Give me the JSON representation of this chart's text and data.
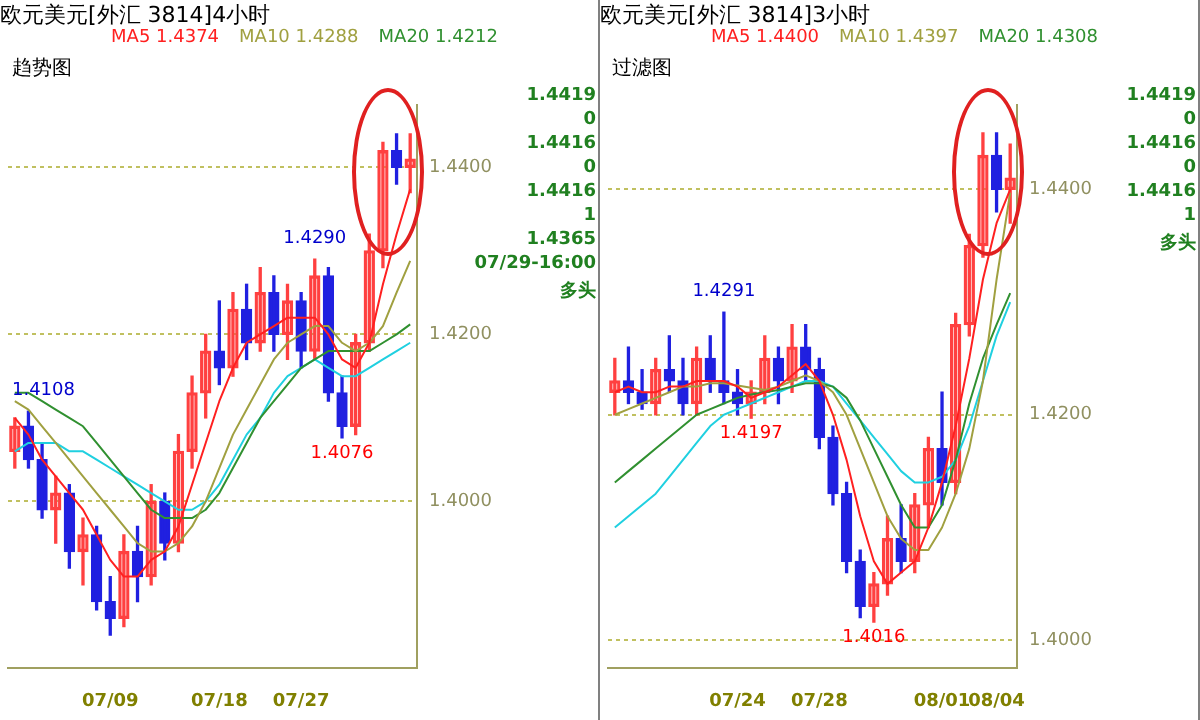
{
  "chart_data": [
    {
      "type": "candlestick",
      "title": "欧元美元[外汇 3814]4小时",
      "subtitle": "趋势图",
      "legend": "top",
      "grid": "y",
      "categories": [
        null,
        null,
        null,
        null,
        null,
        null,
        null,
        "07/09",
        null,
        null,
        null,
        null,
        null,
        null,
        null,
        "07/18",
        null,
        null,
        null,
        null,
        null,
        "07/27",
        null,
        null,
        null,
        null,
        null,
        null,
        null,
        null
      ],
      "ohlc": [
        [
          1.406,
          1.41,
          1.404,
          1.409
        ],
        [
          1.409,
          1.4108,
          1.404,
          1.405
        ],
        [
          1.405,
          1.407,
          1.398,
          1.399
        ],
        [
          1.399,
          1.403,
          1.395,
          1.401
        ],
        [
          1.401,
          1.402,
          1.392,
          1.394
        ],
        [
          1.394,
          1.398,
          1.39,
          1.396
        ],
        [
          1.396,
          1.397,
          1.387,
          1.388
        ],
        [
          1.388,
          1.391,
          1.384,
          1.386
        ],
        [
          1.386,
          1.396,
          1.385,
          1.394
        ],
        [
          1.394,
          1.397,
          1.388,
          1.391
        ],
        [
          1.391,
          1.402,
          1.39,
          1.4
        ],
        [
          1.4,
          1.401,
          1.393,
          1.395
        ],
        [
          1.395,
          1.408,
          1.394,
          1.406
        ],
        [
          1.406,
          1.415,
          1.404,
          1.413
        ],
        [
          1.413,
          1.42,
          1.41,
          1.418
        ],
        [
          1.418,
          1.424,
          1.414,
          1.416
        ],
        [
          1.416,
          1.425,
          1.415,
          1.423
        ],
        [
          1.423,
          1.426,
          1.417,
          1.419
        ],
        [
          1.419,
          1.428,
          1.418,
          1.425
        ],
        [
          1.425,
          1.427,
          1.418,
          1.42
        ],
        [
          1.42,
          1.426,
          1.417,
          1.424
        ],
        [
          1.424,
          1.425,
          1.416,
          1.418
        ],
        [
          1.418,
          1.429,
          1.417,
          1.427
        ],
        [
          1.427,
          1.428,
          1.412,
          1.413
        ],
        [
          1.413,
          1.415,
          1.4076,
          1.409
        ],
        [
          1.409,
          1.42,
          1.408,
          1.419
        ],
        [
          1.419,
          1.432,
          1.418,
          1.43
        ],
        [
          1.43,
          1.443,
          1.428,
          1.442
        ],
        [
          1.442,
          1.444,
          1.438,
          1.44
        ],
        [
          1.44,
          1.444,
          1.437,
          1.441
        ]
      ],
      "series": [
        {
          "name": "MA5 1.4374",
          "type": "line",
          "color": "#ff2020",
          "values": [
            1.41,
            1.408,
            1.405,
            1.403,
            1.401,
            1.399,
            1.396,
            1.393,
            1.391,
            1.391,
            1.393,
            1.394,
            1.397,
            1.402,
            1.407,
            1.412,
            1.416,
            1.419,
            1.42,
            1.421,
            1.422,
            1.422,
            1.422,
            1.42,
            1.417,
            1.416,
            1.419,
            1.426,
            1.432,
            1.4374
          ]
        },
        {
          "name": "MA10 1.4288",
          "type": "line",
          "color": "#a0a040",
          "values": [
            1.412,
            1.411,
            1.409,
            1.407,
            1.405,
            1.403,
            1.401,
            1.399,
            1.397,
            1.395,
            1.394,
            1.394,
            1.395,
            1.397,
            1.4,
            1.404,
            1.408,
            1.411,
            1.414,
            1.417,
            1.419,
            1.42,
            1.421,
            1.421,
            1.419,
            1.418,
            1.419,
            1.421,
            1.425,
            1.4288
          ]
        },
        {
          "name": "MA20 1.4212",
          "type": "line",
          "color": "#309030",
          "values": [
            1.413,
            1.413,
            1.412,
            1.411,
            1.41,
            1.409,
            1.407,
            1.405,
            1.403,
            1.401,
            1.399,
            1.398,
            1.398,
            1.398,
            1.399,
            1.401,
            1.404,
            1.407,
            1.41,
            1.412,
            1.414,
            1.416,
            1.417,
            1.418,
            1.418,
            1.418,
            1.418,
            1.419,
            1.42,
            1.4212
          ]
        },
        {
          "type": "line",
          "color": "#20d0e0",
          "values": [
            1.406,
            1.407,
            1.407,
            1.407,
            1.406,
            1.406,
            1.405,
            1.404,
            1.403,
            1.402,
            1.401,
            1.4,
            1.399,
            1.399,
            1.4,
            1.402,
            1.405,
            1.408,
            1.41,
            1.413,
            1.415,
            1.416,
            1.417,
            1.416,
            1.415,
            1.415,
            1.416,
            1.417,
            1.418,
            1.419
          ]
        }
      ],
      "ylim": [
        1.38,
        1.4475
      ],
      "yticks": [
        {
          "value": 1.4,
          "label": "1.4000"
        },
        {
          "value": 1.42,
          "label": "1.4200"
        },
        {
          "value": 1.44,
          "label": "1.4400"
        }
      ],
      "annotations": [
        "1.4419",
        "0",
        "1.4416",
        "0",
        "1.4416",
        "1",
        "1.4365",
        "07/29-16:00",
        "多头",
        {
          "text": "1.4108",
          "y": 1.4108
        },
        {
          "text": "1.4290",
          "y": 1.429
        },
        {
          "text": "1.4076",
          "y": 1.4076
        }
      ]
    },
    {
      "type": "candlestick",
      "title": "欧元美元[外汇 3814]3小时",
      "subtitle": "过滤图",
      "legend": "top",
      "grid": "y",
      "categories": [
        null,
        null,
        null,
        null,
        null,
        null,
        null,
        null,
        null,
        "07/24",
        null,
        null,
        null,
        null,
        null,
        "07/28",
        null,
        null,
        null,
        null,
        null,
        null,
        null,
        null,
        "08/01",
        null,
        null,
        null,
        "08/04",
        null
      ],
      "ohlc": [
        [
          1.422,
          1.425,
          1.42,
          1.423
        ],
        [
          1.423,
          1.426,
          1.421,
          1.422
        ],
        [
          1.422,
          1.424,
          1.4205,
          1.421
        ],
        [
          1.421,
          1.425,
          1.42,
          1.424
        ],
        [
          1.424,
          1.427,
          1.422,
          1.423
        ],
        [
          1.423,
          1.425,
          1.42,
          1.421
        ],
        [
          1.421,
          1.426,
          1.42,
          1.425
        ],
        [
          1.425,
          1.427,
          1.422,
          1.423
        ],
        [
          1.423,
          1.4291,
          1.421,
          1.422
        ],
        [
          1.422,
          1.424,
          1.42,
          1.421
        ],
        [
          1.421,
          1.423,
          1.4197,
          1.422
        ],
        [
          1.422,
          1.427,
          1.421,
          1.425
        ],
        [
          1.425,
          1.426,
          1.421,
          1.423
        ],
        [
          1.423,
          1.428,
          1.422,
          1.426
        ],
        [
          1.426,
          1.428,
          1.423,
          1.424
        ],
        [
          1.424,
          1.425,
          1.417,
          1.418
        ],
        [
          1.418,
          1.419,
          1.412,
          1.413
        ],
        [
          1.413,
          1.414,
          1.406,
          1.407
        ],
        [
          1.407,
          1.408,
          1.402,
          1.403
        ],
        [
          1.403,
          1.406,
          1.4016,
          1.405
        ],
        [
          1.405,
          1.411,
          1.404,
          1.409
        ],
        [
          1.409,
          1.412,
          1.406,
          1.407
        ],
        [
          1.407,
          1.413,
          1.406,
          1.412
        ],
        [
          1.412,
          1.418,
          1.41,
          1.417
        ],
        [
          1.417,
          1.422,
          1.412,
          1.414
        ],
        [
          1.414,
          1.429,
          1.413,
          1.428
        ],
        [
          1.428,
          1.436,
          1.427,
          1.435
        ],
        [
          1.435,
          1.445,
          1.434,
          1.443
        ],
        [
          1.443,
          1.445,
          1.438,
          1.44
        ],
        [
          1.44,
          1.444,
          1.437,
          1.441
        ]
      ],
      "series": [
        {
          "name": "MA5 1.4400",
          "type": "line",
          "color": "#ff2020",
          "values": [
            1.422,
            1.4225,
            1.422,
            1.422,
            1.4225,
            1.4225,
            1.423,
            1.423,
            1.423,
            1.4225,
            1.4215,
            1.422,
            1.4225,
            1.4235,
            1.4245,
            1.423,
            1.42,
            1.416,
            1.411,
            1.407,
            1.405,
            1.406,
            1.407,
            1.41,
            1.414,
            1.419,
            1.425,
            1.432,
            1.437,
            1.44
          ]
        },
        {
          "name": "MA10 1.4397",
          "type": "line",
          "color": "#a0a040",
          "values": [
            1.42,
            1.4205,
            1.421,
            1.4215,
            1.422,
            1.4225,
            1.4225,
            1.4228,
            1.4228,
            1.4226,
            1.4224,
            1.4222,
            1.4225,
            1.423,
            1.4235,
            1.423,
            1.422,
            1.42,
            1.417,
            1.414,
            1.411,
            1.409,
            1.408,
            1.408,
            1.41,
            1.413,
            1.417,
            1.423,
            1.432,
            1.4397
          ]
        },
        {
          "name": "MA20 1.4308",
          "type": "line",
          "color": "#309030",
          "values": [
            1.414,
            1.415,
            1.416,
            1.417,
            1.418,
            1.419,
            1.42,
            1.4205,
            1.421,
            1.4215,
            1.4218,
            1.422,
            1.4222,
            1.4225,
            1.4228,
            1.4228,
            1.4225,
            1.4215,
            1.4195,
            1.417,
            1.4145,
            1.412,
            1.41,
            1.41,
            1.412,
            1.416,
            1.421,
            1.425,
            1.428,
            1.4308
          ]
        },
        {
          "type": "line",
          "color": "#20d0e0",
          "values": [
            1.41,
            1.411,
            1.412,
            1.413,
            1.4145,
            1.416,
            1.4175,
            1.419,
            1.42,
            1.4205,
            1.421,
            1.4215,
            1.422,
            1.4225,
            1.423,
            1.423,
            1.4225,
            1.421,
            1.4195,
            1.418,
            1.4165,
            1.415,
            1.414,
            1.414,
            1.4145,
            1.416,
            1.419,
            1.423,
            1.427,
            1.43
          ]
        }
      ],
      "ylim": [
        1.3975,
        1.4475
      ],
      "yticks": [
        {
          "value": 1.4,
          "label": "1.4000"
        },
        {
          "value": 1.42,
          "label": "1.4200"
        },
        {
          "value": 1.44,
          "label": "1.4400"
        }
      ],
      "annotations": [
        "1.4419",
        "0",
        "1.4416",
        "0",
        "1.4416",
        "1",
        "多头",
        {
          "text": "1.4291",
          "y": 1.4291
        },
        {
          "text": "1.4197",
          "y": 1.4197
        },
        {
          "text": "1.4016",
          "y": 1.4016
        }
      ]
    }
  ]
}
